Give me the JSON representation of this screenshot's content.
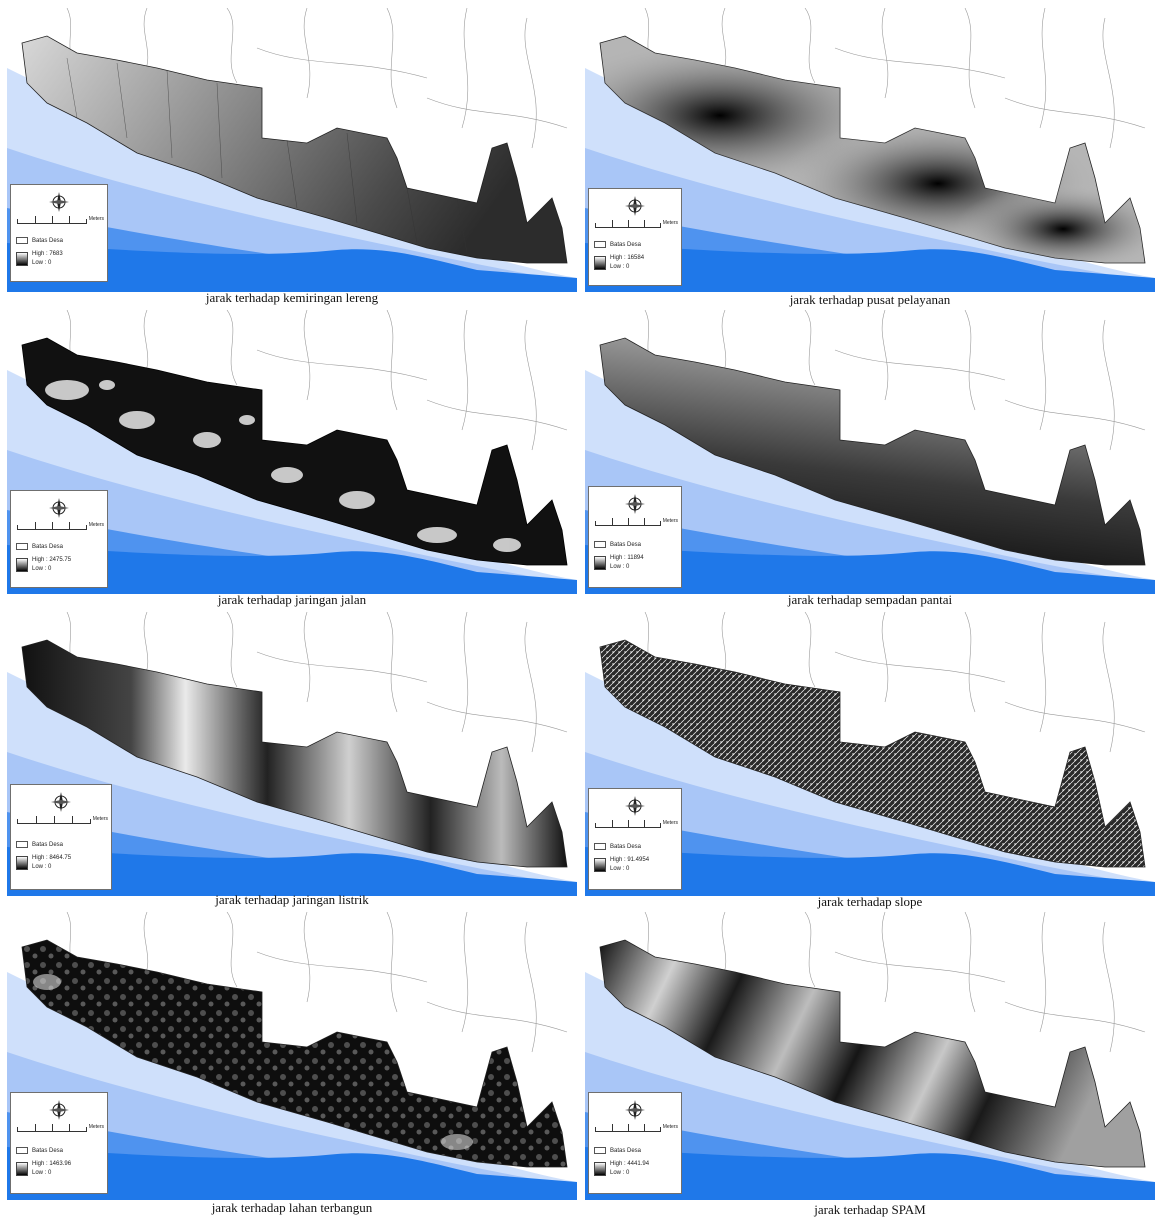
{
  "panels": [
    {
      "caption": "jarak terhadap kemiringan lereng",
      "legend": {
        "label_1": "Batas Desa",
        "label_2": "High : 7683",
        "label_3": "Low : 0"
      }
    },
    {
      "caption": "jarak terhadap pusat pelayanan",
      "legend": {
        "label_1": "Batas Desa",
        "label_2": "High : 16584",
        "label_3": "Low : 0"
      }
    },
    {
      "caption": "jarak terhadap jaringan jalan",
      "legend": {
        "label_1": "Batas Desa",
        "label_2": "High : 2475.75",
        "label_3": "Low : 0"
      }
    },
    {
      "caption": "jarak terhadap sempadan pantai",
      "legend": {
        "label_1": "Batas Desa",
        "label_2": "High : 11894",
        "label_3": "Low : 0"
      }
    },
    {
      "caption": "jarak terhadap jaringan listrik",
      "legend": {
        "label_1": "Batas Desa",
        "label_2": "High : 8464.75",
        "label_3": "Low : 0"
      }
    },
    {
      "caption": "jarak terhadap slope",
      "legend": {
        "label_1": "Batas Desa",
        "label_2": "High : 91.4954",
        "label_3": "Low : 0"
      }
    },
    {
      "caption": "jarak terhadap lahan terbangun",
      "legend": {
        "label_1": "Batas Desa",
        "label_2": "High : 1463.96",
        "label_3": "Low : 0"
      }
    },
    {
      "caption": "jarak terhadap SPAM",
      "legend": {
        "label_1": "Batas Desa",
        "label_2": "High : 4441.94",
        "label_3": "Low : 0"
      }
    }
  ],
  "scale_unit": "Meters",
  "colors": {
    "sea_light": "#cfe0fb",
    "sea_mid": "#a9c6f7",
    "sea_deep": "#1f78e9",
    "coast_band": "#b8d2f9"
  }
}
